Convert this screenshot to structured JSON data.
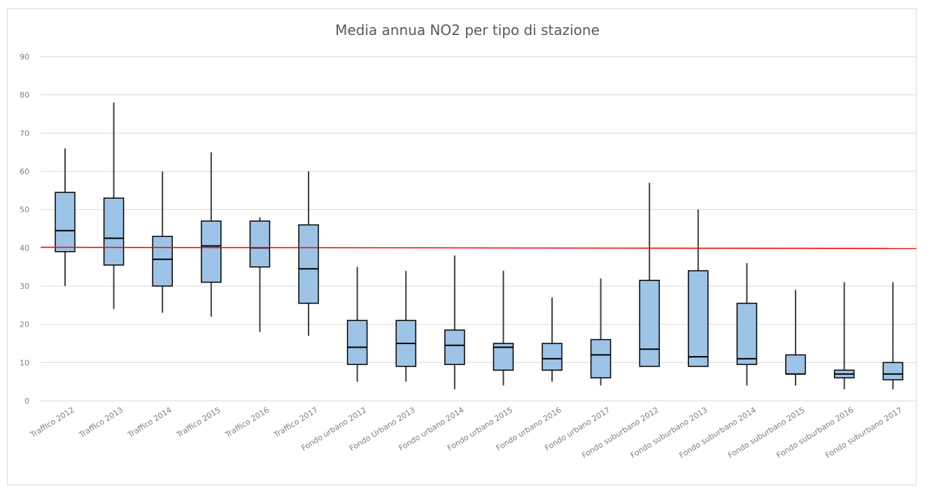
{
  "chart_data": {
    "type": "boxplot",
    "title": "Media annua NO2 per tipo di stazione",
    "ylim": [
      0,
      90
    ],
    "yticks": [
      0,
      10,
      20,
      30,
      40,
      50,
      60,
      70,
      80,
      90
    ],
    "grid": true,
    "reference_line": {
      "value": 40,
      "color": "#ff0000"
    },
    "box_color": "#9dc3e6",
    "categories": [
      "Traffico 2012",
      "Traffico 2013",
      "Traffico 2014",
      "Traffico 2015",
      "Traffico 2016",
      "Traffico 2017",
      "Fondo urbano 2012",
      "Fondo Urbano 2013",
      "Fondo urbano 2014",
      "Fondo urbano 2015",
      "Fondo urbano 2016",
      "Fondo urbano 2017",
      "Fondo suburbano 2012",
      "Fondo suburbano 2013",
      "Fondo suburbano 2014",
      "Fondo suburbano 2015",
      "Fondo suburbano 2016",
      "Fondo suburbano 2017"
    ],
    "boxes": [
      {
        "min": 30,
        "q1": 39,
        "median": 44.5,
        "q3": 54.5,
        "max": 66
      },
      {
        "min": 24,
        "q1": 35.5,
        "median": 42.5,
        "q3": 53,
        "max": 78
      },
      {
        "min": 23,
        "q1": 30,
        "median": 37,
        "q3": 43,
        "max": 60
      },
      {
        "min": 22,
        "q1": 31,
        "median": 40.5,
        "q3": 47,
        "max": 65
      },
      {
        "min": 18,
        "q1": 35,
        "median": 40,
        "q3": 47,
        "max": 48
      },
      {
        "min": 17,
        "q1": 25.5,
        "median": 34.5,
        "q3": 46,
        "max": 60
      },
      {
        "min": 5,
        "q1": 9.5,
        "median": 14,
        "q3": 21,
        "max": 35
      },
      {
        "min": 5,
        "q1": 9,
        "median": 15,
        "q3": 21,
        "max": 34
      },
      {
        "min": 3,
        "q1": 9.5,
        "median": 14.5,
        "q3": 18.5,
        "max": 38
      },
      {
        "min": 4,
        "q1": 8,
        "median": 14,
        "q3": 15,
        "max": 34
      },
      {
        "min": 5,
        "q1": 8,
        "median": 11,
        "q3": 15,
        "max": 27
      },
      {
        "min": 4,
        "q1": 6,
        "median": 12,
        "q3": 16,
        "max": 32
      },
      {
        "min": 9,
        "q1": 9,
        "median": 13.5,
        "q3": 31.5,
        "max": 57
      },
      {
        "min": 9,
        "q1": 9,
        "median": 11.5,
        "q3": 34,
        "max": 50
      },
      {
        "min": 4,
        "q1": 9.5,
        "median": 11,
        "q3": 25.5,
        "max": 36
      },
      {
        "min": 4,
        "q1": 7,
        "median": 7,
        "q3": 12,
        "max": 29
      },
      {
        "min": 3,
        "q1": 6,
        "median": 7,
        "q3": 8,
        "max": 31
      },
      {
        "min": 3,
        "q1": 5.5,
        "median": 7,
        "q3": 10,
        "max": 31
      }
    ]
  }
}
